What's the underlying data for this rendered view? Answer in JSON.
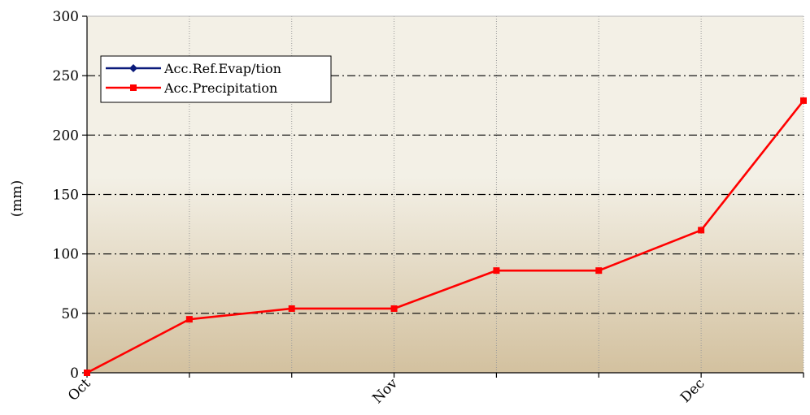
{
  "chart_data": {
    "type": "line",
    "title": "",
    "xlabel": "",
    "ylabel": "(mm)",
    "ylim": [
      0,
      300
    ],
    "yticks": [
      0,
      50,
      100,
      150,
      200,
      250,
      300
    ],
    "x_tick_labels": [
      "Oct",
      "Nov",
      "Dec"
    ],
    "x_tick_label_indices": [
      0,
      3,
      6
    ],
    "grid": true,
    "legend_position": "top-left",
    "series": [
      {
        "name": "Acc.Ref.Evap/tion",
        "color": "#0a1a7a",
        "marker": "diamond",
        "values": []
      },
      {
        "name": "Acc.Precipitation",
        "color": "#ff0000",
        "marker": "square",
        "values": [
          0,
          45,
          54,
          54,
          86,
          86,
          120,
          229
        ]
      }
    ],
    "plot_background": {
      "top_color": "#f3f0e6",
      "bottom_color": "#d3c19f"
    }
  }
}
